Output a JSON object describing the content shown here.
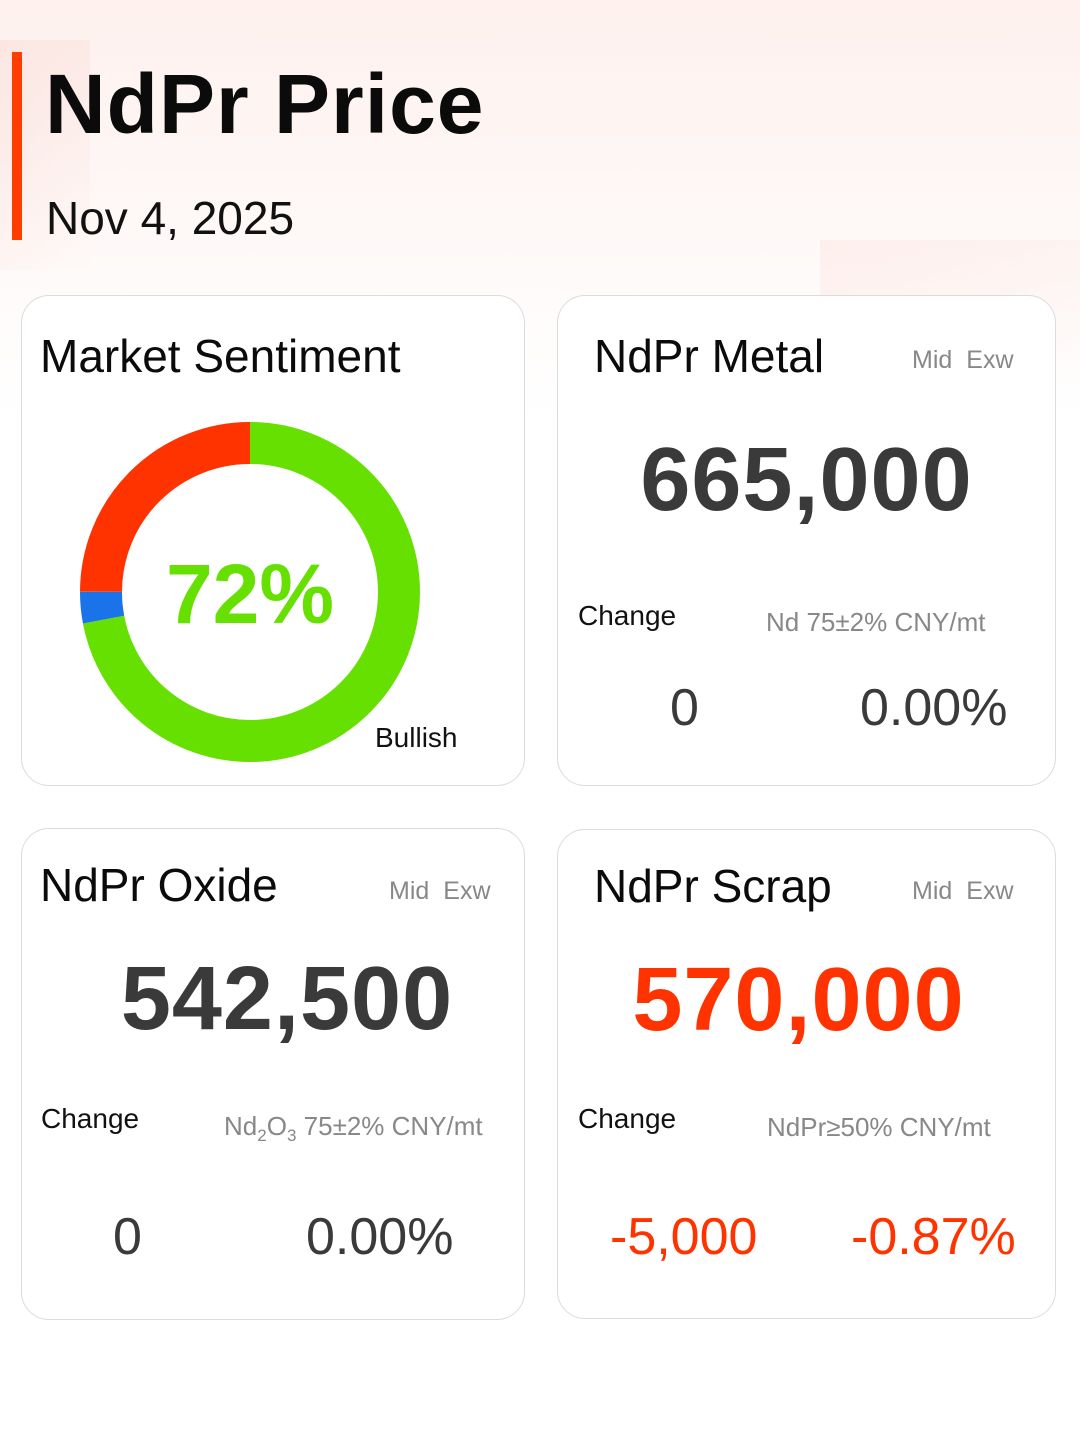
{
  "header": {
    "title": "NdPr Price",
    "date": "Nov 4, 2025"
  },
  "sentiment": {
    "title": "Market Sentiment",
    "percent_label": "72%",
    "state_label": "Bullish",
    "bullish_percent": 72,
    "neutral_percent": 3,
    "bearish_percent": 25,
    "colors": {
      "bullish": "#66e000",
      "neutral": "#1a73e8",
      "bearish": "#ff3300"
    }
  },
  "metal": {
    "title": "NdPr Metal",
    "tag1": "Mid",
    "tag2": "Exw",
    "price": "665,000",
    "change_label": "Change",
    "spec": "Nd 75±2% CNY/mt",
    "change_abs": "0",
    "change_pct": "0.00%"
  },
  "oxide": {
    "title": "NdPr Oxide",
    "tag1": "Mid",
    "tag2": "Exw",
    "price": "542,500",
    "change_label": "Change",
    "spec_formula": {
      "el1": "Nd",
      "sub1": "2",
      "el2": "O",
      "sub2": "3"
    },
    "spec_rest": " 75±2% CNY/mt",
    "change_abs": "0",
    "change_pct": "0.00%"
  },
  "scrap": {
    "title": "NdPr Scrap",
    "tag1": "Mid",
    "tag2": "Exw",
    "price": "570,000",
    "change_label": "Change",
    "spec": "NdPr≥50% CNY/mt",
    "change_abs": "-5,000",
    "change_pct": "-0.87%",
    "down_color": "#ff3300"
  }
}
